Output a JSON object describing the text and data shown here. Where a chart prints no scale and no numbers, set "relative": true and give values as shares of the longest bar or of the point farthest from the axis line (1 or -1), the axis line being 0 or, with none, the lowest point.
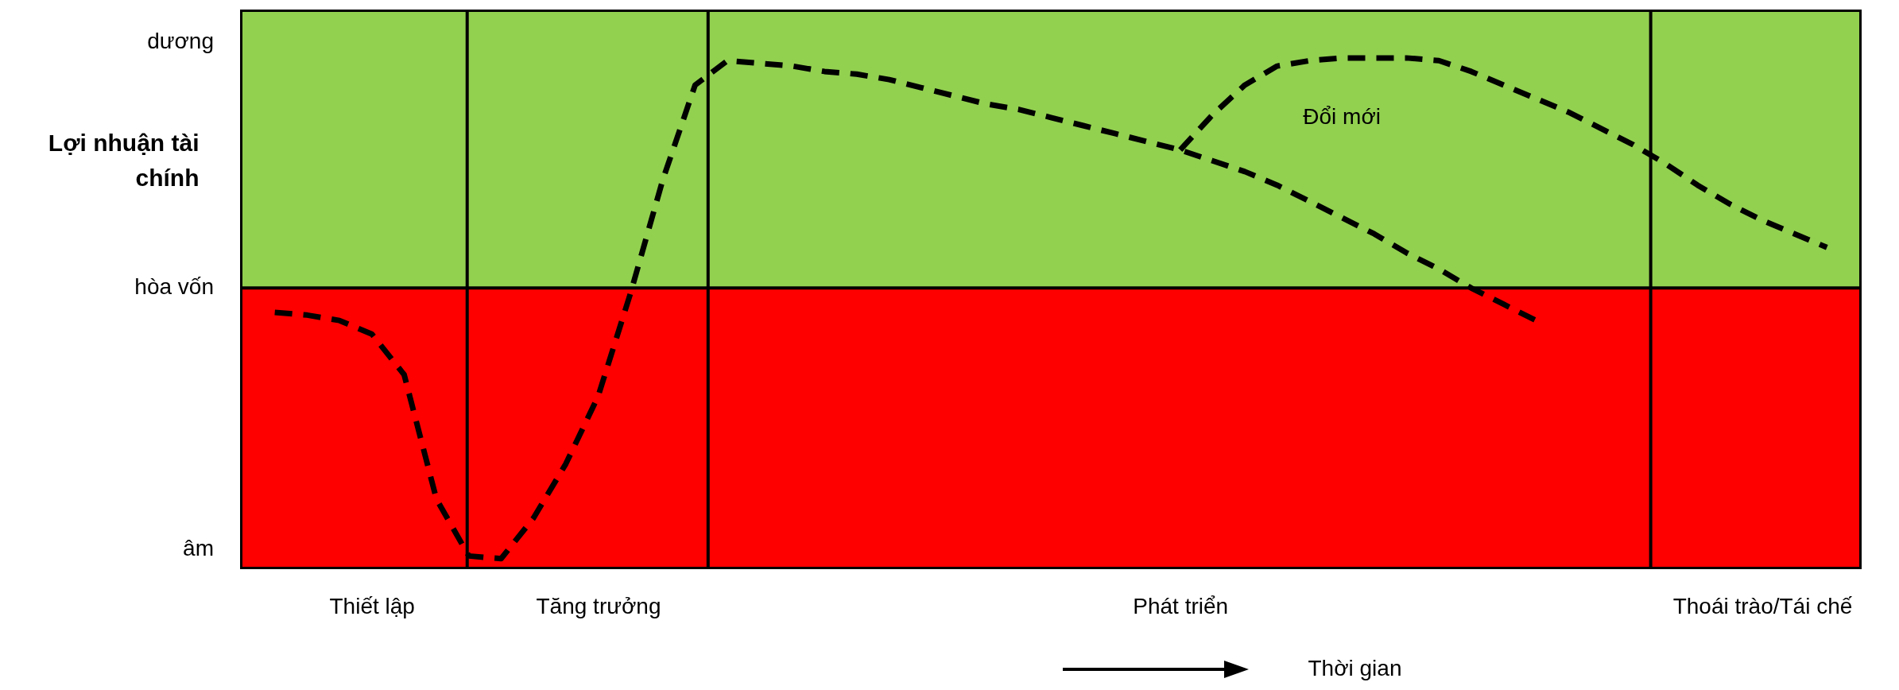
{
  "chart_data": {
    "type": "line",
    "relative": true,
    "xlabel": "Thời gian",
    "ylabel": "Lợi nhuận tài chính",
    "ylim": [
      -1.03,
      1.02
    ],
    "categories": [
      null,
      null,
      null,
      null,
      "Thiết lập",
      null,
      null,
      null,
      null,
      null,
      null,
      "Tăng trưởng",
      null,
      null,
      null,
      null,
      null,
      null,
      null,
      null,
      null,
      null,
      null,
      null,
      null,
      null,
      null,
      null,
      null,
      "Phát triển",
      null,
      null,
      null,
      null,
      null,
      null,
      null,
      null,
      null,
      null,
      null,
      null,
      null,
      null,
      null,
      null,
      null,
      "Thoái trào/Tái chế",
      null,
      null,
      null
    ],
    "line_style": "dashed",
    "bands": [
      {
        "axis": "y",
        "from": 0,
        "to": 1.02,
        "color": "#92d050"
      },
      {
        "axis": "y",
        "from": -1.03,
        "to": 0,
        "color": "#ff0000"
      }
    ],
    "ref_lines": [
      {
        "axis": "y",
        "value": 0,
        "label": "hòa vốn"
      }
    ],
    "annotations": [
      "dương",
      "âm"
    ],
    "series": [
      {
        "color": "#000000",
        "values": [
          null,
          -0.09,
          -0.1,
          -0.12,
          -0.17,
          -0.32,
          -0.78,
          -0.99,
          -1,
          -0.85,
          -0.65,
          -0.4,
          -0.02,
          0.4,
          0.75,
          0.84,
          0.83,
          0.82,
          0.8,
          0.79,
          0.77,
          0.74,
          0.71,
          0.68,
          0.66,
          0.63,
          0.6,
          0.57,
          0.54,
          0.51,
          0.47,
          0.43,
          0.38,
          0.32,
          0.26,
          0.2,
          0.13,
          0.07,
          0,
          -0.06,
          -0.12,
          null,
          null,
          null,
          null,
          null,
          null,
          null,
          null,
          null,
          null
        ]
      },
      {
        "name": "Đổi mới",
        "color": "#000000",
        "values": [
          null,
          null,
          null,
          null,
          null,
          null,
          null,
          null,
          null,
          null,
          null,
          null,
          null,
          null,
          null,
          null,
          null,
          null,
          null,
          null,
          null,
          null,
          null,
          null,
          null,
          null,
          null,
          null,
          null,
          0.51,
          0.64,
          0.75,
          0.82,
          0.84,
          0.85,
          0.85,
          0.85,
          0.84,
          0.8,
          0.75,
          0.7,
          0.65,
          0.59,
          0.53,
          0.46,
          0.38,
          0.31,
          0.25,
          0.2,
          0.15,
          null
        ]
      }
    ]
  }
}
